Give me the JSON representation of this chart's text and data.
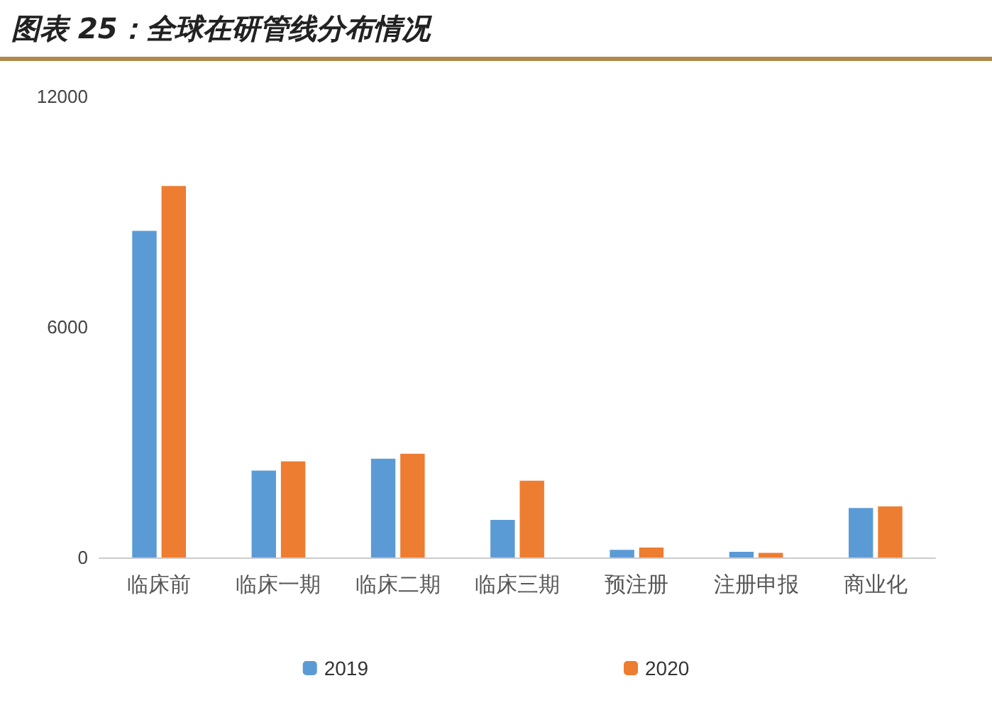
{
  "chart_data": {
    "type": "bar",
    "title": "图表 25：全球在研管线分布情况",
    "categories": [
      "临床前",
      "临床一期",
      "临床二期",
      "临床三期",
      "预注册",
      "注册申报",
      "商业化"
    ],
    "series": [
      {
        "name": "2019",
        "color": "#5b9bd5",
        "values": [
          8500,
          2260,
          2570,
          980,
          200,
          150,
          1290
        ]
      },
      {
        "name": "2020",
        "color": "#ed7d31",
        "values": [
          9670,
          2500,
          2700,
          2000,
          260,
          120,
          1330
        ]
      }
    ],
    "ylim": [
      0,
      12000
    ],
    "yticks": [
      0,
      6000,
      12000
    ],
    "grid": false,
    "legend": "bottom"
  }
}
